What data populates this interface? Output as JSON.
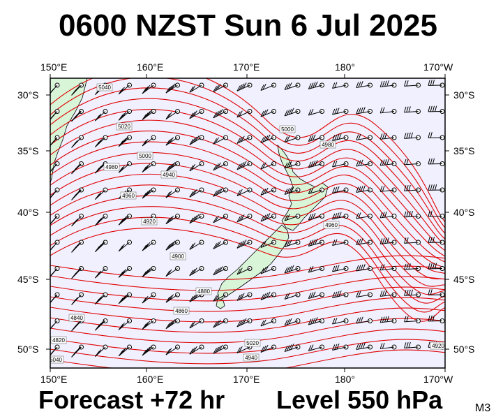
{
  "title": "0600 NZST Sun 6 Jul 2025",
  "forecast_label": "Forecast +72 hr",
  "level_label": "Level 550 hPa",
  "model_tag": "M3",
  "axes": {
    "lon_labels": [
      "150°E",
      "160°E",
      "170°E",
      "180°",
      "170°W"
    ],
    "lat_labels": [
      "30°S",
      "35°S",
      "40°S",
      "45°S",
      "50°S"
    ]
  },
  "contour_labels": [
    "5040",
    "5020",
    "5000",
    "4980",
    "4960",
    "4940",
    "4920",
    "4900",
    "4880",
    "4860",
    "4840",
    "4820"
  ],
  "colors": {
    "ocean": "#f0f0ff",
    "land": "#d8f5d8",
    "contour": "#e00000",
    "barb": "#000000"
  }
}
